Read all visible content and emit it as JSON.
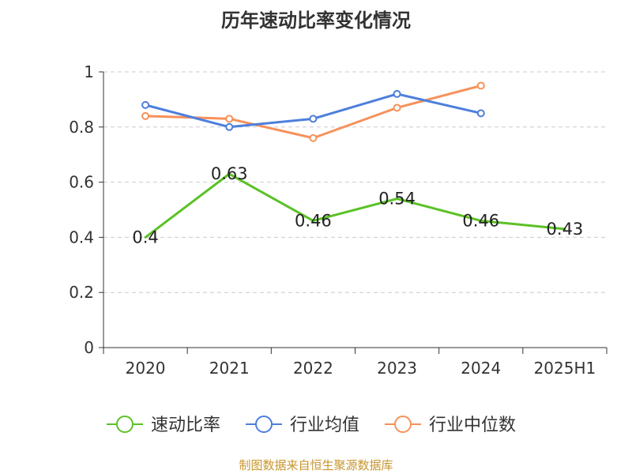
{
  "chart_data": {
    "type": "line",
    "title": "历年速动比率变化情况",
    "categories": [
      "2020",
      "2021",
      "2022",
      "2023",
      "2024",
      "2025H1"
    ],
    "y_ticks": [
      "0",
      "0.2",
      "0.4",
      "0.6",
      "0.8",
      "1"
    ],
    "ylim": [
      0,
      1
    ],
    "grid": true,
    "legend_position": "bottom",
    "series": [
      {
        "name": "速动比率",
        "color": "#5bc126",
        "values": [
          0.4,
          0.63,
          0.46,
          0.54,
          0.46,
          0.43
        ],
        "labels": [
          "0.4",
          "0.63",
          "0.46",
          "0.54",
          "0.46",
          "0.43"
        ],
        "show_markers": false,
        "show_labels": true
      },
      {
        "name": "行业均值",
        "color": "#4d7fdc",
        "values": [
          0.88,
          0.8,
          0.83,
          0.92,
          0.85,
          null
        ],
        "show_markers": true,
        "show_labels": false
      },
      {
        "name": "行业中位数",
        "color": "#f7915a",
        "values": [
          0.84,
          0.83,
          0.76,
          0.87,
          0.95,
          null
        ],
        "show_markers": true,
        "show_labels": false
      }
    ]
  },
  "source_note": "制图数据来自恒生聚源数据库"
}
